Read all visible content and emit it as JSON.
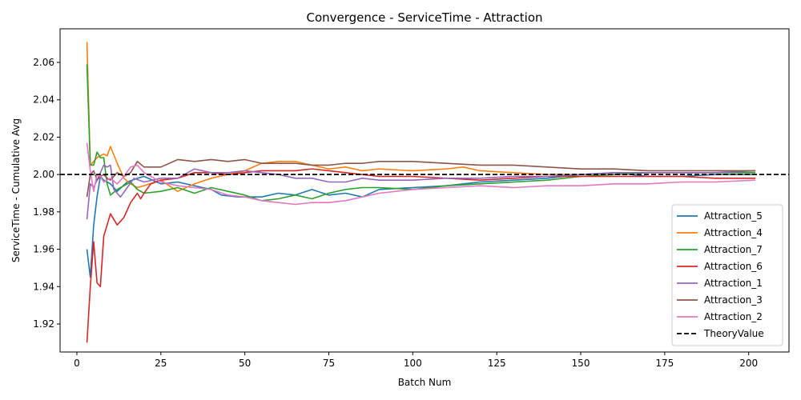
{
  "chart_data": {
    "type": "line",
    "title": "Convergence - ServiceTime - Attraction",
    "xlabel": "Batch Num",
    "ylabel": "ServiceTime - Cumulative Avg",
    "xlim": [
      -5,
      212
    ],
    "ylim": [
      1.905,
      2.078
    ],
    "xticks": [
      0,
      25,
      50,
      75,
      100,
      125,
      150,
      175,
      200
    ],
    "yticks": [
      1.92,
      1.94,
      1.96,
      1.98,
      2.0,
      2.02,
      2.04,
      2.06
    ],
    "ytick_labels": [
      "1.92",
      "1.94",
      "1.96",
      "1.98",
      "2.00",
      "2.02",
      "2.04",
      "2.06"
    ],
    "grid": false,
    "legend_position": "lower-right",
    "series": [
      {
        "name": "Attraction_5",
        "color": "#1f77b4",
        "points": [
          [
            3,
            1.96
          ],
          [
            4,
            1.945
          ],
          [
            5,
            1.973
          ],
          [
            6,
            1.988
          ],
          [
            7,
            1.999
          ],
          [
            8,
            1.997
          ],
          [
            10,
            1.995
          ],
          [
            12,
            1.991
          ],
          [
            15,
            1.996
          ],
          [
            18,
            1.998
          ],
          [
            20,
            1.999
          ],
          [
            25,
            1.995
          ],
          [
            30,
            1.996
          ],
          [
            35,
            1.994
          ],
          [
            40,
            1.992
          ],
          [
            43,
            1.989
          ],
          [
            48,
            1.988
          ],
          [
            55,
            1.988
          ],
          [
            60,
            1.99
          ],
          [
            65,
            1.989
          ],
          [
            70,
            1.992
          ],
          [
            75,
            1.989
          ],
          [
            80,
            1.99
          ],
          [
            85,
            1.988
          ],
          [
            90,
            1.992
          ],
          [
            100,
            1.993
          ],
          [
            110,
            1.994
          ],
          [
            120,
            1.996
          ],
          [
            130,
            1.997
          ],
          [
            140,
            1.998
          ],
          [
            150,
            2.0
          ],
          [
            160,
            2.001
          ],
          [
            170,
            1.999
          ],
          [
            180,
            1.999
          ],
          [
            190,
            2.0
          ],
          [
            202,
            2.0
          ]
        ]
      },
      {
        "name": "Attraction_4",
        "color": "#ff7f0e",
        "points": [
          [
            3,
            2.071
          ],
          [
            4,
            2.005
          ],
          [
            5,
            2.007
          ],
          [
            6,
            2.009
          ],
          [
            7,
            2.01
          ],
          [
            8,
            2.011
          ],
          [
            9,
            2.01
          ],
          [
            10,
            2.015
          ],
          [
            12,
            2.006
          ],
          [
            14,
            1.998
          ],
          [
            16,
            1.995
          ],
          [
            18,
            1.993
          ],
          [
            20,
            1.994
          ],
          [
            25,
            1.997
          ],
          [
            30,
            1.991
          ],
          [
            35,
            1.995
          ],
          [
            40,
            1.998
          ],
          [
            45,
            2.0
          ],
          [
            50,
            2.002
          ],
          [
            55,
            2.006
          ],
          [
            60,
            2.007
          ],
          [
            65,
            2.007
          ],
          [
            70,
            2.005
          ],
          [
            75,
            2.003
          ],
          [
            80,
            2.004
          ],
          [
            85,
            2.002
          ],
          [
            90,
            2.003
          ],
          [
            100,
            2.002
          ],
          [
            110,
            2.003
          ],
          [
            115,
            2.004
          ],
          [
            120,
            2.002
          ],
          [
            130,
            2.001
          ],
          [
            140,
            2.0
          ],
          [
            150,
            2.0
          ],
          [
            160,
            2.0
          ],
          [
            170,
            2.001
          ],
          [
            180,
            2.001
          ],
          [
            190,
            2.001
          ],
          [
            202,
            2.001
          ]
        ]
      },
      {
        "name": "Attraction_7",
        "color": "#2ca02c",
        "points": [
          [
            3,
            2.059
          ],
          [
            4,
            2.005
          ],
          [
            5,
            2.005
          ],
          [
            6,
            2.012
          ],
          [
            7,
            2.009
          ],
          [
            8,
            2.009
          ],
          [
            9,
            1.995
          ],
          [
            10,
            1.989
          ],
          [
            12,
            1.992
          ],
          [
            14,
            1.994
          ],
          [
            16,
            1.996
          ],
          [
            18,
            1.992
          ],
          [
            20,
            1.99
          ],
          [
            25,
            1.991
          ],
          [
            30,
            1.993
          ],
          [
            35,
            1.99
          ],
          [
            40,
            1.993
          ],
          [
            45,
            1.991
          ],
          [
            50,
            1.989
          ],
          [
            55,
            1.986
          ],
          [
            60,
            1.987
          ],
          [
            65,
            1.989
          ],
          [
            70,
            1.987
          ],
          [
            75,
            1.99
          ],
          [
            80,
            1.992
          ],
          [
            85,
            1.993
          ],
          [
            90,
            1.993
          ],
          [
            100,
            1.992
          ],
          [
            110,
            1.994
          ],
          [
            120,
            1.995
          ],
          [
            130,
            1.996
          ],
          [
            140,
            1.997
          ],
          [
            150,
            1.999
          ],
          [
            160,
            2.0
          ],
          [
            170,
            2.001
          ],
          [
            180,
            2.001
          ],
          [
            190,
            2.001
          ],
          [
            202,
            2.001
          ]
        ]
      },
      {
        "name": "Attraction_6",
        "color": "#d62728",
        "points": [
          [
            3,
            1.91
          ],
          [
            4,
            1.94
          ],
          [
            5,
            1.964
          ],
          [
            6,
            1.942
          ],
          [
            7,
            1.94
          ],
          [
            8,
            1.967
          ],
          [
            10,
            1.979
          ],
          [
            12,
            1.973
          ],
          [
            14,
            1.977
          ],
          [
            16,
            1.985
          ],
          [
            18,
            1.99
          ],
          [
            19,
            1.987
          ],
          [
            20,
            1.99
          ],
          [
            22,
            1.995
          ],
          [
            25,
            1.997
          ],
          [
            30,
            1.998
          ],
          [
            35,
            2.001
          ],
          [
            40,
            2.001
          ],
          [
            45,
            2.0
          ],
          [
            50,
            2.001
          ],
          [
            55,
            2.002
          ],
          [
            60,
            2.002
          ],
          [
            65,
            2.002
          ],
          [
            70,
            2.003
          ],
          [
            75,
            2.002
          ],
          [
            80,
            2.001
          ],
          [
            85,
            2.0
          ],
          [
            90,
            1.999
          ],
          [
            100,
            1.999
          ],
          [
            110,
            1.998
          ],
          [
            120,
            1.997
          ],
          [
            130,
            1.998
          ],
          [
            140,
            1.999
          ],
          [
            150,
            1.999
          ],
          [
            160,
            1.999
          ],
          [
            170,
            1.999
          ],
          [
            180,
            1.999
          ],
          [
            190,
            1.998
          ],
          [
            202,
            1.998
          ]
        ]
      },
      {
        "name": "Attraction_1",
        "color": "#9467bd",
        "points": [
          [
            3,
            1.976
          ],
          [
            4,
            1.995
          ],
          [
            5,
            1.993
          ],
          [
            6,
            1.997
          ],
          [
            7,
            2.001
          ],
          [
            8,
            2.005
          ],
          [
            9,
            2.004
          ],
          [
            10,
            2.005
          ],
          [
            11,
            1.992
          ],
          [
            13,
            1.988
          ],
          [
            15,
            1.993
          ],
          [
            17,
            1.998
          ],
          [
            20,
            1.996
          ],
          [
            25,
            1.998
          ],
          [
            30,
            1.998
          ],
          [
            35,
            2.003
          ],
          [
            40,
            2.001
          ],
          [
            45,
            2.001
          ],
          [
            50,
            2.002
          ],
          [
            55,
            2.001
          ],
          [
            60,
            2.0
          ],
          [
            65,
            1.998
          ],
          [
            70,
            1.998
          ],
          [
            75,
            1.996
          ],
          [
            80,
            1.996
          ],
          [
            85,
            1.998
          ],
          [
            90,
            1.997
          ],
          [
            100,
            1.997
          ],
          [
            110,
            1.998
          ],
          [
            120,
            1.998
          ],
          [
            130,
            1.999
          ],
          [
            140,
            1.999
          ],
          [
            150,
            2.0
          ],
          [
            160,
            2.001
          ],
          [
            170,
            2.001
          ],
          [
            180,
            2.001
          ],
          [
            190,
            2.001
          ],
          [
            202,
            2.002
          ]
        ]
      },
      {
        "name": "Attraction_3",
        "color": "#8c564b",
        "points": [
          [
            3,
            1.988
          ],
          [
            4,
            2.0
          ],
          [
            5,
            2.002
          ],
          [
            6,
            1.997
          ],
          [
            7,
            1.999
          ],
          [
            8,
            2.0
          ],
          [
            9,
            1.998
          ],
          [
            10,
            1.997
          ],
          [
            12,
            2.001
          ],
          [
            14,
            1.999
          ],
          [
            16,
            2.001
          ],
          [
            18,
            2.007
          ],
          [
            20,
            2.004
          ],
          [
            25,
            2.004
          ],
          [
            30,
            2.008
          ],
          [
            35,
            2.007
          ],
          [
            40,
            2.008
          ],
          [
            45,
            2.007
          ],
          [
            50,
            2.008
          ],
          [
            55,
            2.006
          ],
          [
            60,
            2.006
          ],
          [
            65,
            2.006
          ],
          [
            70,
            2.005
          ],
          [
            75,
            2.005
          ],
          [
            80,
            2.006
          ],
          [
            85,
            2.006
          ],
          [
            90,
            2.007
          ],
          [
            100,
            2.007
          ],
          [
            110,
            2.006
          ],
          [
            120,
            2.005
          ],
          [
            130,
            2.005
          ],
          [
            140,
            2.004
          ],
          [
            150,
            2.003
          ],
          [
            160,
            2.003
          ],
          [
            170,
            2.002
          ],
          [
            180,
            2.002
          ],
          [
            190,
            2.002
          ],
          [
            202,
            2.002
          ]
        ]
      },
      {
        "name": "Attraction_2",
        "color": "#e377c2",
        "points": [
          [
            3,
            2.017
          ],
          [
            4,
            2.002
          ],
          [
            5,
            1.991
          ],
          [
            6,
            2.0
          ],
          [
            7,
            1.999
          ],
          [
            8,
            1.996
          ],
          [
            10,
            1.998
          ],
          [
            12,
            1.995
          ],
          [
            14,
            1.999
          ],
          [
            16,
            2.004
          ],
          [
            18,
            2.005
          ],
          [
            20,
            2.001
          ],
          [
            25,
            1.996
          ],
          [
            30,
            1.994
          ],
          [
            35,
            1.993
          ],
          [
            40,
            1.992
          ],
          [
            45,
            1.989
          ],
          [
            50,
            1.988
          ],
          [
            55,
            1.986
          ],
          [
            60,
            1.985
          ],
          [
            65,
            1.984
          ],
          [
            70,
            1.985
          ],
          [
            75,
            1.985
          ],
          [
            80,
            1.986
          ],
          [
            85,
            1.988
          ],
          [
            90,
            1.99
          ],
          [
            100,
            1.992
          ],
          [
            110,
            1.993
          ],
          [
            120,
            1.994
          ],
          [
            130,
            1.993
          ],
          [
            140,
            1.994
          ],
          [
            150,
            1.994
          ],
          [
            160,
            1.995
          ],
          [
            170,
            1.995
          ],
          [
            180,
            1.996
          ],
          [
            190,
            1.996
          ],
          [
            202,
            1.997
          ]
        ]
      },
      {
        "name": "TheoryValue",
        "color": "#000000",
        "dashed": true,
        "points": [
          [
            -5,
            2.0
          ],
          [
            212,
            2.0
          ]
        ]
      }
    ]
  }
}
